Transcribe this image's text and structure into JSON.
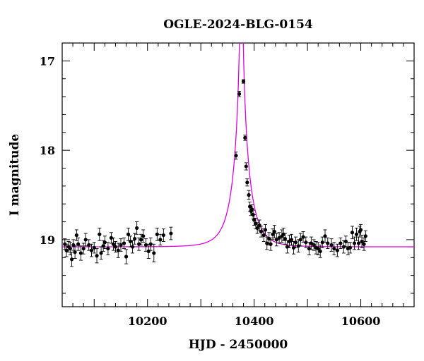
{
  "chart_data": {
    "type": "scatter",
    "title": "OGLE-2024-BLG-0154",
    "xlabel": "HJD - 2450000",
    "ylabel": "I magnitude",
    "xlim": [
      10040,
      10700
    ],
    "ylim": [
      19.75,
      16.8
    ],
    "y_inverted": true,
    "grid": false,
    "x_ticks": [
      10200,
      10400,
      10600
    ],
    "y_ticks": [
      17,
      18,
      19
    ],
    "colors": {
      "points": "#000000",
      "model": "#e000e0"
    },
    "model": {
      "baseline": 19.08,
      "peak_time": 10376,
      "u0": 0.025,
      "tE": 30
    },
    "points": [
      [
        10045,
        19.05,
        0.06
      ],
      [
        10048,
        19.12,
        0.07
      ],
      [
        10052,
        19.08,
        0.06
      ],
      [
        10055,
        19.1,
        0.07
      ],
      [
        10058,
        19.22,
        0.08
      ],
      [
        10061,
        19.06,
        0.06
      ],
      [
        10064,
        19.14,
        0.07
      ],
      [
        10067,
        18.95,
        0.06
      ],
      [
        10070,
        19.05,
        0.07
      ],
      [
        10075,
        19.15,
        0.08
      ],
      [
        10080,
        19.1,
        0.06
      ],
      [
        10084,
        19.0,
        0.07
      ],
      [
        10090,
        19.06,
        0.06
      ],
      [
        10095,
        19.12,
        0.07
      ],
      [
        10100,
        19.09,
        0.06
      ],
      [
        10105,
        19.18,
        0.08
      ],
      [
        10110,
        18.94,
        0.07
      ],
      [
        10113,
        19.15,
        0.07
      ],
      [
        10117,
        19.07,
        0.06
      ],
      [
        10120,
        19.03,
        0.07
      ],
      [
        10126,
        19.1,
        0.07
      ],
      [
        10132,
        18.98,
        0.06
      ],
      [
        10136,
        19.05,
        0.07
      ],
      [
        10140,
        19.08,
        0.06
      ],
      [
        10145,
        19.12,
        0.08
      ],
      [
        10150,
        19.06,
        0.07
      ],
      [
        10156,
        19.04,
        0.06
      ],
      [
        10160,
        19.19,
        0.08
      ],
      [
        10164,
        18.94,
        0.07
      ],
      [
        10168,
        19.02,
        0.06
      ],
      [
        10172,
        19.08,
        0.07
      ],
      [
        10176,
        18.99,
        0.06
      ],
      [
        10180,
        18.87,
        0.07
      ],
      [
        10184,
        19.05,
        0.07
      ],
      [
        10188,
        19.0,
        0.06
      ],
      [
        10192,
        18.96,
        0.07
      ],
      [
        10197,
        19.06,
        0.07
      ],
      [
        10202,
        19.13,
        0.08
      ],
      [
        10206,
        19.05,
        0.07
      ],
      [
        10212,
        19.15,
        0.1
      ],
      [
        10218,
        18.94,
        0.07
      ],
      [
        10224,
        19.0,
        0.06
      ],
      [
        10230,
        18.95,
        0.07
      ],
      [
        10244,
        18.93,
        0.07
      ],
      [
        10366,
        18.06,
        0.04
      ],
      [
        10372,
        17.37,
        0.03
      ],
      [
        10380,
        17.23,
        0.02
      ],
      [
        10383,
        17.86,
        0.03
      ],
      [
        10385,
        18.18,
        0.04
      ],
      [
        10387,
        18.36,
        0.04
      ],
      [
        10390,
        18.5,
        0.05
      ],
      [
        10392,
        18.63,
        0.05
      ],
      [
        10394,
        18.68,
        0.05
      ],
      [
        10396,
        18.66,
        0.05
      ],
      [
        10398,
        18.72,
        0.05
      ],
      [
        10400,
        18.78,
        0.06
      ],
      [
        10403,
        18.82,
        0.06
      ],
      [
        10406,
        18.87,
        0.06
      ],
      [
        10410,
        18.84,
        0.06
      ],
      [
        10413,
        18.91,
        0.06
      ],
      [
        10418,
        18.95,
        0.07
      ],
      [
        10421,
        18.89,
        0.06
      ],
      [
        10424,
        19.04,
        0.07
      ],
      [
        10428,
        18.99,
        0.07
      ],
      [
        10431,
        19.05,
        0.07
      ],
      [
        10435,
        18.94,
        0.06
      ],
      [
        10438,
        18.91,
        0.07
      ],
      [
        10442,
        19.0,
        0.07
      ],
      [
        10447,
        18.98,
        0.06
      ],
      [
        10452,
        18.96,
        0.07
      ],
      [
        10455,
        18.94,
        0.07
      ],
      [
        10458,
        18.99,
        0.06
      ],
      [
        10462,
        19.08,
        0.07
      ],
      [
        10466,
        19.02,
        0.07
      ],
      [
        10470,
        19.0,
        0.06
      ],
      [
        10474,
        19.09,
        0.07
      ],
      [
        10478,
        19.03,
        0.06
      ],
      [
        10483,
        19.07,
        0.07
      ],
      [
        10487,
        19.0,
        0.07
      ],
      [
        10492,
        18.97,
        0.06
      ],
      [
        10497,
        19.03,
        0.06
      ],
      [
        10503,
        19.1,
        0.07
      ],
      [
        10507,
        19.04,
        0.07
      ],
      [
        10512,
        19.06,
        0.06
      ],
      [
        10516,
        19.09,
        0.07
      ],
      [
        10520,
        19.1,
        0.07
      ],
      [
        10524,
        19.13,
        0.07
      ],
      [
        10528,
        19.03,
        0.06
      ],
      [
        10533,
        18.96,
        0.07
      ],
      [
        10538,
        19.04,
        0.06
      ],
      [
        10545,
        19.06,
        0.07
      ],
      [
        10550,
        19.1,
        0.07
      ],
      [
        10556,
        19.12,
        0.07
      ],
      [
        10562,
        19.04,
        0.06
      ],
      [
        10568,
        19.08,
        0.07
      ],
      [
        10572,
        19.02,
        0.06
      ],
      [
        10576,
        19.1,
        0.07
      ],
      [
        10580,
        19.09,
        0.06
      ],
      [
        10584,
        18.92,
        0.07
      ],
      [
        10588,
        19.04,
        0.07
      ],
      [
        10592,
        18.94,
        0.07
      ],
      [
        10596,
        19.04,
        0.07
      ],
      [
        10598,
        18.91,
        0.06
      ],
      [
        10600,
        18.89,
        0.06
      ],
      [
        10602,
        19.02,
        0.07
      ],
      [
        10606,
        19.05,
        0.07
      ],
      [
        10609,
        18.96,
        0.06
      ]
    ]
  }
}
